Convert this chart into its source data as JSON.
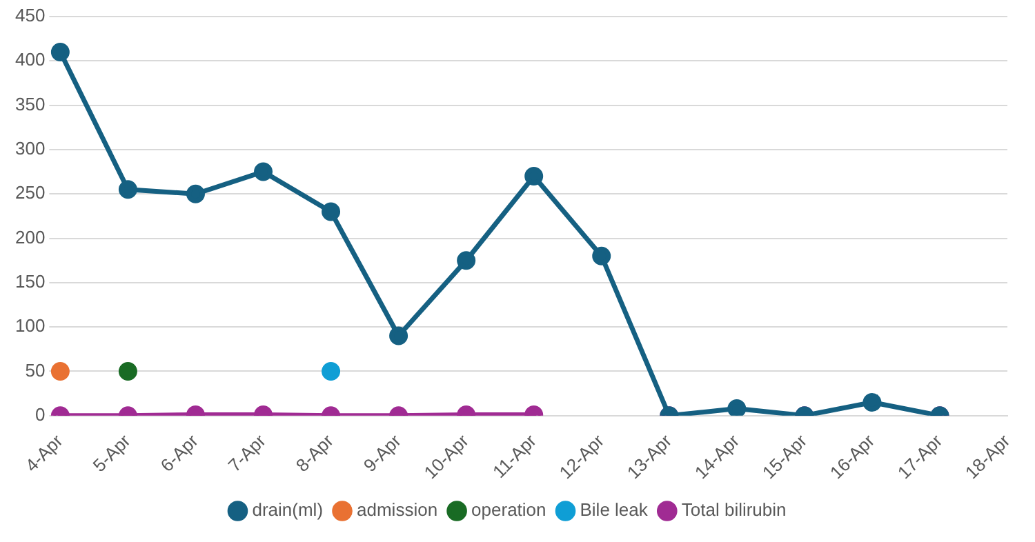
{
  "chart_data": {
    "type": "line",
    "categories": [
      "4-Apr",
      "5-Apr",
      "6-Apr",
      "7-Apr",
      "8-Apr",
      "9-Apr",
      "10-Apr",
      "11-Apr",
      "12-Apr",
      "13-Apr",
      "14-Apr",
      "15-Apr",
      "16-Apr",
      "17-Apr",
      "18-Apr"
    ],
    "series": [
      {
        "name": "drain(ml)",
        "color": "#156082",
        "values": [
          410,
          255,
          250,
          275,
          230,
          90,
          175,
          270,
          180,
          0,
          8,
          0,
          15,
          0,
          null
        ]
      },
      {
        "name": "admission",
        "color": "#e97132",
        "values": [
          50,
          null,
          null,
          null,
          null,
          null,
          null,
          null,
          null,
          null,
          null,
          null,
          null,
          null,
          null
        ]
      },
      {
        "name": "operation",
        "color": "#196b24",
        "values": [
          null,
          50,
          null,
          null,
          null,
          null,
          null,
          null,
          null,
          null,
          null,
          null,
          null,
          null,
          null
        ]
      },
      {
        "name": "Bile leak",
        "color": "#0f9ed5",
        "values": [
          null,
          null,
          null,
          null,
          50,
          null,
          null,
          null,
          null,
          null,
          null,
          null,
          null,
          null,
          null
        ]
      },
      {
        "name": "Total bilirubin",
        "color": "#a02b93",
        "values": [
          0,
          0,
          1,
          1,
          0,
          0,
          1,
          1,
          null,
          0,
          null,
          0,
          null,
          0,
          null
        ]
      }
    ],
    "ylim": [
      0,
      450
    ],
    "yticks": [
      0,
      50,
      100,
      150,
      200,
      250,
      300,
      350,
      400,
      450
    ],
    "grid": "y",
    "legend": "bottom",
    "marker": "circle",
    "line_style": "solid"
  }
}
